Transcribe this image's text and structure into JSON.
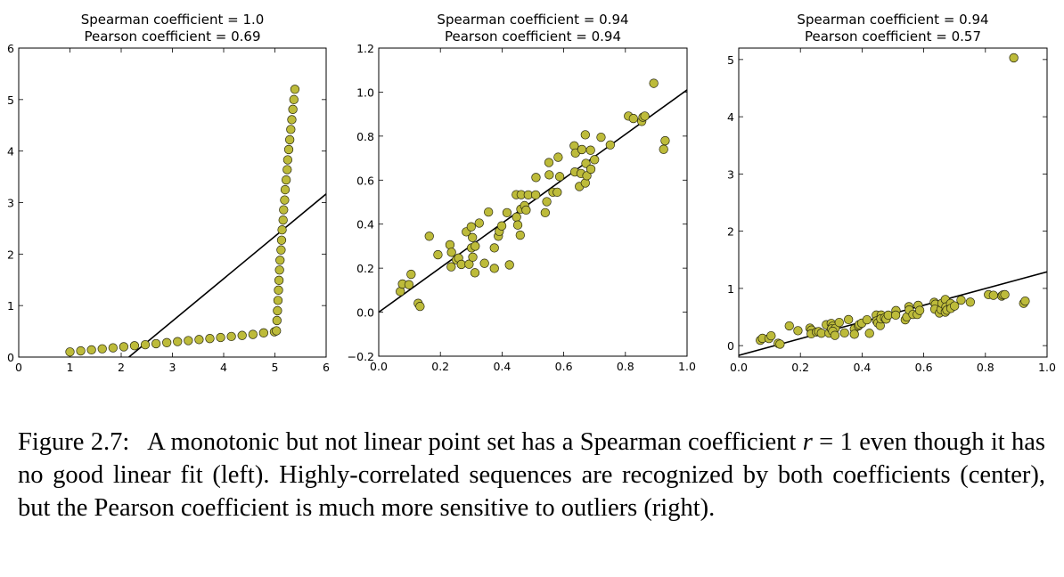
{
  "chart_data": [
    {
      "type": "scatter",
      "title": [
        "Spearman coefficient = 1.0",
        "Pearson coefficient = 0.69"
      ],
      "xlim": [
        0,
        6
      ],
      "ylim": [
        0,
        6
      ],
      "xticks": [
        "0",
        "1",
        "2",
        "3",
        "4",
        "5",
        "6"
      ],
      "yticks": [
        "0",
        "1",
        "2",
        "3",
        "4",
        "5",
        "6"
      ],
      "marker_color": "#bdbb3a",
      "fit_line": {
        "slope": 0.823,
        "intercept": -1.77
      },
      "x": [
        1.0,
        1.21,
        1.42,
        1.63,
        1.84,
        2.05,
        2.26,
        2.47,
        2.68,
        2.89,
        3.1,
        3.31,
        3.52,
        3.73,
        3.94,
        4.15,
        4.36,
        4.57,
        4.78,
        4.99,
        5.03,
        5.04,
        5.05,
        5.06,
        5.07,
        5.08,
        5.09,
        5.1,
        5.12,
        5.13,
        5.14,
        5.16,
        5.17,
        5.19,
        5.2,
        5.22,
        5.24,
        5.25,
        5.27,
        5.29,
        5.31,
        5.33,
        5.35,
        5.37,
        5.39
      ],
      "y": [
        0.1,
        0.12,
        0.14,
        0.16,
        0.18,
        0.2,
        0.22,
        0.24,
        0.26,
        0.28,
        0.3,
        0.32,
        0.34,
        0.36,
        0.38,
        0.4,
        0.42,
        0.44,
        0.47,
        0.49,
        0.51,
        0.71,
        0.9,
        1.1,
        1.3,
        1.49,
        1.69,
        1.88,
        2.08,
        2.27,
        2.47,
        2.66,
        2.86,
        3.05,
        3.25,
        3.44,
        3.64,
        3.83,
        4.03,
        4.22,
        4.42,
        4.61,
        4.81,
        5.0,
        5.2
      ]
    },
    {
      "type": "scatter",
      "title": [
        "Spearman coefficient = 0.94",
        "Pearson coefficient = 0.94"
      ],
      "xlim": [
        0,
        1
      ],
      "ylim": [
        -0.2,
        1.2
      ],
      "xticks": [
        "0.0",
        "0.2",
        "0.4",
        "0.6",
        "0.8",
        "1.0"
      ],
      "yticks": [
        "−0.2",
        "0.0",
        "0.2",
        "0.4",
        "0.6",
        "0.8",
        "1.0",
        "1.2"
      ],
      "marker_color": "#bdbb3a",
      "fit_line": {
        "slope": 1.01,
        "intercept": 0.0
      },
      "x": [
        0.07,
        0.077,
        0.098,
        0.105,
        0.128,
        0.134,
        0.164,
        0.192,
        0.231,
        0.236,
        0.235,
        0.252,
        0.259,
        0.268,
        0.284,
        0.293,
        0.3,
        0.304,
        0.301,
        0.313,
        0.305,
        0.312,
        0.326,
        0.343,
        0.356,
        0.375,
        0.375,
        0.388,
        0.391,
        0.399,
        0.416,
        0.424,
        0.446,
        0.447,
        0.451,
        0.459,
        0.462,
        0.461,
        0.473,
        0.478,
        0.485,
        0.51,
        0.509,
        0.54,
        0.545,
        0.552,
        0.553,
        0.565,
        0.579,
        0.582,
        0.587,
        0.634,
        0.638,
        0.636,
        0.651,
        0.656,
        0.659,
        0.67,
        0.67,
        0.672,
        0.675,
        0.687,
        0.688,
        0.7,
        0.721,
        0.751,
        0.81,
        0.826,
        0.853,
        0.857,
        0.863,
        0.892,
        0.924,
        0.929
      ],
      "y": [
        0.094,
        0.128,
        0.125,
        0.172,
        0.04,
        0.026,
        0.345,
        0.261,
        0.306,
        0.272,
        0.206,
        0.238,
        0.246,
        0.217,
        0.365,
        0.218,
        0.388,
        0.339,
        0.292,
        0.3,
        0.25,
        0.179,
        0.405,
        0.222,
        0.455,
        0.292,
        0.199,
        0.345,
        0.367,
        0.392,
        0.452,
        0.215,
        0.534,
        0.432,
        0.396,
        0.35,
        0.534,
        0.468,
        0.484,
        0.464,
        0.533,
        0.612,
        0.533,
        0.452,
        0.502,
        0.68,
        0.624,
        0.545,
        0.545,
        0.704,
        0.616,
        0.756,
        0.723,
        0.637,
        0.571,
        0.63,
        0.739,
        0.806,
        0.587,
        0.676,
        0.62,
        0.736,
        0.65,
        0.693,
        0.795,
        0.76,
        0.891,
        0.88,
        0.867,
        0.886,
        0.891,
        1.04,
        0.74,
        0.779
      ]
    },
    {
      "type": "scatter",
      "title": [
        "Spearman coefficient = 0.94",
        "Pearson coefficient = 0.57"
      ],
      "xlim": [
        0,
        1
      ],
      "ylim": [
        -0.2,
        5.2
      ],
      "xticks": [
        "0.0",
        "0.2",
        "0.4",
        "0.6",
        "0.8",
        "1.0"
      ],
      "yticks": [
        "0",
        "1",
        "2",
        "3",
        "4",
        "5"
      ],
      "marker_color": "#bdbb3a",
      "fit_line": {
        "slope": 1.46,
        "intercept": -0.17
      },
      "x": [
        0.07,
        0.077,
        0.098,
        0.105,
        0.128,
        0.134,
        0.164,
        0.192,
        0.231,
        0.236,
        0.235,
        0.252,
        0.259,
        0.268,
        0.284,
        0.293,
        0.3,
        0.304,
        0.301,
        0.313,
        0.305,
        0.312,
        0.326,
        0.343,
        0.356,
        0.375,
        0.375,
        0.388,
        0.391,
        0.399,
        0.416,
        0.424,
        0.446,
        0.447,
        0.451,
        0.459,
        0.462,
        0.461,
        0.473,
        0.478,
        0.485,
        0.51,
        0.509,
        0.54,
        0.545,
        0.552,
        0.553,
        0.565,
        0.579,
        0.582,
        0.587,
        0.634,
        0.638,
        0.636,
        0.651,
        0.656,
        0.659,
        0.67,
        0.67,
        0.672,
        0.675,
        0.687,
        0.688,
        0.7,
        0.721,
        0.751,
        0.81,
        0.826,
        0.853,
        0.857,
        0.863,
        0.892,
        0.924,
        0.929
      ],
      "y": [
        0.094,
        0.128,
        0.125,
        0.172,
        0.04,
        0.026,
        0.345,
        0.261,
        0.306,
        0.272,
        0.206,
        0.238,
        0.246,
        0.217,
        0.365,
        0.218,
        0.388,
        0.339,
        0.292,
        0.3,
        0.25,
        0.179,
        0.405,
        0.222,
        0.455,
        0.292,
        0.199,
        0.345,
        0.367,
        0.392,
        0.452,
        0.215,
        0.534,
        0.432,
        0.396,
        0.35,
        0.534,
        0.468,
        0.484,
        0.464,
        0.533,
        0.612,
        0.533,
        0.452,
        0.502,
        0.68,
        0.624,
        0.545,
        0.545,
        0.704,
        0.616,
        0.756,
        0.723,
        0.637,
        0.571,
        0.63,
        0.739,
        0.806,
        0.587,
        0.676,
        0.62,
        0.736,
        0.65,
        0.693,
        0.795,
        0.76,
        0.891,
        0.88,
        0.867,
        0.886,
        0.891,
        5.03,
        0.74,
        0.779
      ]
    }
  ],
  "caption": {
    "label": "Figure 2.7:",
    "text_before_r": "A monotonic but not linear point set has a Spearman coefficient",
    "r_symbol": "r",
    "text_after_r": "= 1 even though it has no good linear fit (left). Highly-correlated sequences are recognized by both coefficients (center), but the Pearson coefficient is much more sensitive to outliers (right)."
  }
}
